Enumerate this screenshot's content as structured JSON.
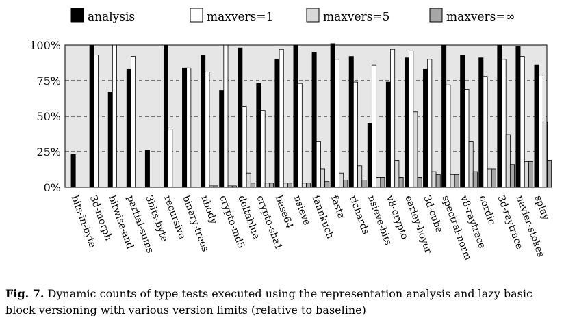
{
  "chart_data": {
    "type": "bar",
    "legend_position": "top",
    "grid": true,
    "ylim": [
      0,
      100
    ],
    "yticks": [
      "0%",
      "25%",
      "50%",
      "75%",
      "100%"
    ],
    "categories": [
      "bits-in-byte",
      "3d-morph",
      "bitwise-and",
      "partial-sums",
      "3bits-byte",
      "recursive",
      "binary-trees",
      "nbody",
      "crypto-md5",
      "deltablue",
      "crypto-sha1",
      "base64",
      "nsieve",
      "fannkuch",
      "fasta",
      "richards",
      "nsieve-bits",
      "v8-crypto",
      "earley-boyer",
      "3d-cube",
      "spectral-norm",
      "v8-raytrace",
      "cordic",
      "3d-raytrace",
      "navier-stokes",
      "splay"
    ],
    "series": [
      {
        "name": "analysis",
        "color": "#000000",
        "values": [
          23,
          100,
          67,
          83,
          26,
          100,
          84,
          93,
          68,
          98,
          73,
          90,
          100,
          95,
          101,
          92,
          45,
          74,
          91,
          83,
          100,
          93,
          91,
          100,
          99,
          86
        ]
      },
      {
        "name": "maxvers=1",
        "color": "#ffffff",
        "values": [
          0,
          93,
          100,
          92,
          0,
          41,
          84,
          81,
          100,
          57,
          54,
          97,
          73,
          32,
          90,
          74,
          86,
          97,
          96,
          90,
          72,
          69,
          78,
          90,
          92,
          79
        ]
      },
      {
        "name": "maxvers=5",
        "color": "#d9d9d9",
        "values": [
          0,
          0,
          0,
          0,
          0,
          0,
          0,
          1,
          1,
          10,
          3,
          3,
          3,
          13,
          10,
          15,
          7,
          19,
          53,
          11,
          9,
          32,
          13,
          37,
          18,
          46
        ]
      },
      {
        "name": "maxvers=∞",
        "color": "#a6a6a6",
        "values": [
          0,
          0,
          0,
          0,
          0,
          0,
          0,
          1,
          1,
          3,
          3,
          3,
          3,
          4,
          5,
          5,
          7,
          7,
          7,
          9,
          9,
          11,
          13,
          16,
          18,
          19
        ]
      }
    ]
  },
  "caption": {
    "label": "Fig. 7.",
    "text": " Dynamic counts of type tests executed using the representation analysis and lazy basic block versioning with various version limits (relative to baseline)"
  }
}
